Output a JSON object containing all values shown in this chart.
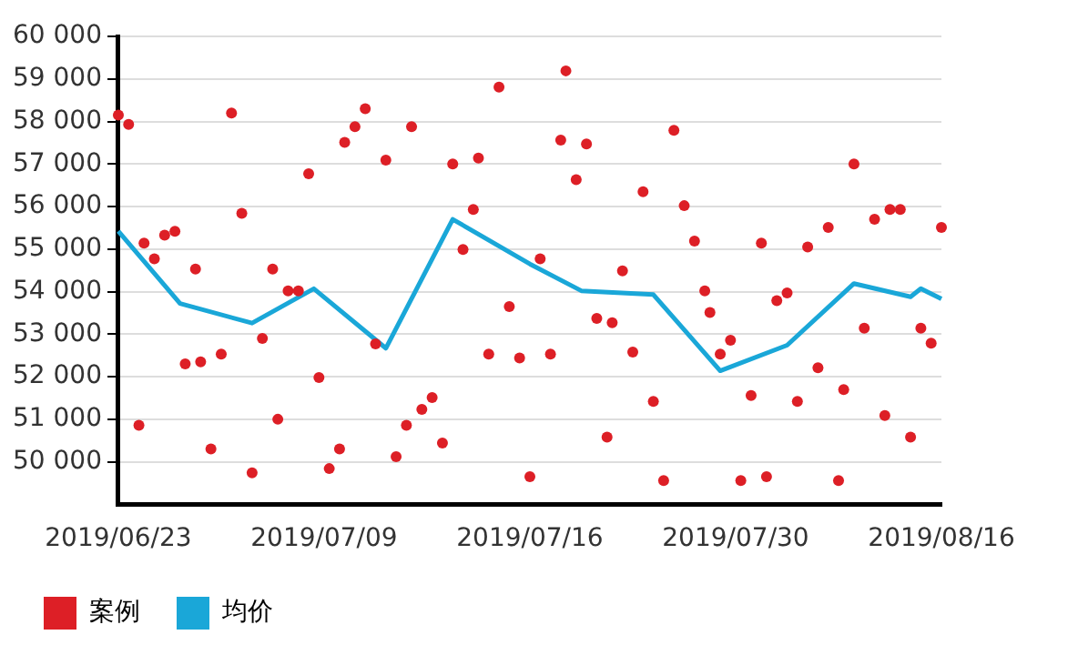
{
  "chart_data": {
    "type": "scatter",
    "categories": [
      "2019/06/23",
      null,
      null,
      null,
      null,
      null,
      null,
      null,
      null,
      null,
      null,
      null,
      null,
      null,
      null,
      null,
      null,
      null,
      null,
      null,
      null,
      null,
      null,
      null,
      null,
      null,
      null,
      null,
      null,
      null,
      null,
      null,
      null,
      null,
      null,
      null,
      null,
      null,
      null,
      null,
      "2019/07/09",
      null,
      null,
      null,
      null,
      null,
      null,
      null,
      null,
      null,
      null,
      null,
      null,
      null,
      null,
      null,
      null,
      null,
      null,
      null,
      null,
      null,
      null,
      null,
      null,
      null,
      null,
      null,
      null,
      null,
      null,
      null,
      null,
      null,
      null,
      null,
      null,
      null,
      null,
      null,
      "2019/07/16",
      null,
      null,
      null,
      null,
      null,
      null,
      null,
      null,
      null,
      null,
      null,
      null,
      null,
      null,
      null,
      null,
      null,
      null,
      null,
      null,
      null,
      null,
      null,
      null,
      null,
      null,
      null,
      null,
      null,
      null,
      null,
      null,
      null,
      null,
      null,
      null,
      null,
      null,
      null,
      "2019/07/30",
      null,
      null,
      null,
      null,
      null,
      null,
      null,
      null,
      null,
      null,
      null,
      null,
      null,
      null,
      null,
      null,
      null,
      null,
      null,
      null,
      null,
      null,
      null,
      null,
      null,
      null,
      null,
      null,
      null,
      null,
      null,
      null,
      null,
      null,
      null,
      null,
      null,
      null,
      null,
      "2019/08/16"
    ],
    "ylim": [
      49000,
      60000
    ],
    "yticks": [
      {
        "value": 50000,
        "label": "50 000"
      },
      {
        "value": 51000,
        "label": "51 000"
      },
      {
        "value": 52000,
        "label": "52 000"
      },
      {
        "value": 53000,
        "label": "53 000"
      },
      {
        "value": 54000,
        "label": "54 000"
      },
      {
        "value": 55000,
        "label": "55 000"
      },
      {
        "value": 56000,
        "label": "56 000"
      },
      {
        "value": 57000,
        "label": "57 000"
      },
      {
        "value": 58000,
        "label": "58 000"
      },
      {
        "value": 59000,
        "label": "59 000"
      },
      {
        "value": 60000,
        "label": "60 000"
      }
    ],
    "grid": "y",
    "legend": "bottom left",
    "series": [
      {
        "name": "案例",
        "color": "#dd1f26",
        "marker": "circle",
        "values": [
          58150,
          null,
          57930,
          null,
          50860,
          55140,
          null,
          54770,
          null,
          55330,
          null,
          55420,
          null,
          52300,
          null,
          54530,
          52350,
          null,
          50300,
          null,
          52530,
          null,
          58200,
          null,
          55840,
          null,
          49740,
          null,
          52900,
          null,
          54530,
          51000,
          null,
          54020,
          null,
          54020,
          null,
          56770,
          null,
          51980,
          null,
          49840,
          null,
          50300,
          57510,
          null,
          57880,
          null,
          58300,
          null,
          52770,
          null,
          57090,
          null,
          50120,
          null,
          50860,
          57880,
          null,
          51230,
          null,
          51510,
          null,
          50440,
          null,
          57000,
          null,
          54990,
          null,
          55930,
          57140,
          null,
          52530,
          null,
          58810,
          null,
          53650,
          null,
          52440,
          null,
          49650,
          null,
          54770,
          null,
          52530,
          null,
          57560,
          59190,
          null,
          56630,
          null,
          57470,
          null,
          53370,
          null,
          50580,
          53270,
          null,
          54490,
          null,
          52580,
          null,
          56350,
          null,
          51420,
          null,
          49560,
          null,
          57790,
          null,
          56020,
          null,
          55190,
          null,
          54020,
          53510,
          null,
          52530,
          null,
          52860,
          null,
          49560,
          null,
          51560,
          null,
          55140,
          49650,
          null,
          53790,
          null,
          53970,
          null,
          51420,
          null,
          55050,
          null,
          52210,
          null,
          55510,
          null,
          49560,
          51700,
          null,
          57000,
          null,
          53140,
          null,
          55700,
          null,
          51090,
          55930,
          null,
          55930,
          null,
          50580,
          null,
          53140,
          null,
          52790,
          null,
          55510
        ]
      },
      {
        "name": "均价",
        "type": "line",
        "color": "#1aa7d8",
        "marker": "none",
        "values": [
          55420,
          null,
          null,
          null,
          null,
          null,
          null,
          null,
          null,
          null,
          null,
          null,
          53720,
          null,
          null,
          null,
          null,
          null,
          null,
          null,
          null,
          null,
          null,
          null,
          null,
          null,
          53260,
          null,
          null,
          null,
          null,
          null,
          null,
          null,
          null,
          null,
          null,
          null,
          54070,
          null,
          null,
          null,
          null,
          null,
          null,
          null,
          null,
          null,
          null,
          null,
          null,
          null,
          52670,
          null,
          null,
          null,
          null,
          null,
          null,
          null,
          null,
          null,
          null,
          null,
          null,
          55700,
          null,
          null,
          null,
          null,
          null,
          null,
          null,
          null,
          null,
          null,
          null,
          null,
          null,
          null,
          54650,
          null,
          null,
          null,
          null,
          null,
          null,
          null,
          null,
          null,
          54020,
          null,
          null,
          null,
          null,
          null,
          null,
          null,
          null,
          null,
          null,
          null,
          null,
          null,
          53930,
          null,
          null,
          null,
          null,
          null,
          null,
          null,
          null,
          null,
          null,
          null,
          null,
          52140,
          null,
          null,
          null,
          null,
          null,
          null,
          null,
          null,
          null,
          null,
          null,
          null,
          52740,
          null,
          null,
          null,
          null,
          null,
          null,
          null,
          null,
          null,
          null,
          null,
          null,
          54190,
          null,
          null,
          null,
          null,
          null,
          null,
          null,
          null,
          null,
          null,
          53880,
          null,
          54070,
          null,
          null,
          null,
          53830
        ]
      }
    ]
  }
}
